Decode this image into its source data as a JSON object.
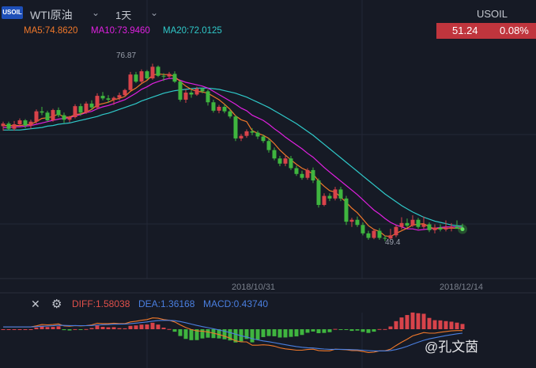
{
  "toolbar": {
    "logo_text": "USOIL",
    "symbol": "WTI原油",
    "interval": "1天",
    "chevron_icon": "chevron-down-icon"
  },
  "ticker": {
    "name": "USOIL",
    "price": "51.24",
    "change": "0.08%",
    "color": "#c0353d"
  },
  "moving_averages": [
    {
      "label": "MA5:74.8620",
      "color": "#f0782a"
    },
    {
      "label": "MA10:73.9460",
      "color": "#e020e0"
    },
    {
      "label": "MA20:72.0125",
      "color": "#2fc9c9"
    }
  ],
  "colors": {
    "background": "#161a25",
    "up": "#d8434a",
    "down": "#3fb53f",
    "grid": "#232836",
    "diff_line": "#f0782a",
    "dea_line": "#4a7fe0"
  },
  "x_axis_labels": [
    "2018/10/31",
    "2018/12/14"
  ],
  "indicator": {
    "close_icon": "close-icon",
    "settings_icon": "gear-icon",
    "diff": "DIFF:1.58038",
    "dea": "DEA:1.36168",
    "macd": "MACD:0.43740"
  },
  "watermark": "@孔文茵",
  "chart_data": {
    "type": "candlestick",
    "high_label": "76.87",
    "low_label": "49.4",
    "series_names": [
      "MA5",
      "MA10",
      "MA20"
    ],
    "candles": [
      [
        67.2,
        67.9,
        66.5,
        67.6
      ],
      [
        67.6,
        67.9,
        66.6,
        66.8
      ],
      [
        66.8,
        68.0,
        66.5,
        67.5
      ],
      [
        67.5,
        68.4,
        67.2,
        68.1
      ],
      [
        68.1,
        68.3,
        66.9,
        67.3
      ],
      [
        67.3,
        68.2,
        66.8,
        67.9
      ],
      [
        67.9,
        69.8,
        67.6,
        69.5
      ],
      [
        69.5,
        70.2,
        68.9,
        69.3
      ],
      [
        69.3,
        69.6,
        67.9,
        68.1
      ],
      [
        68.1,
        69.9,
        67.9,
        69.7
      ],
      [
        69.7,
        70.1,
        68.6,
        68.9
      ],
      [
        68.9,
        69.3,
        67.7,
        68.2
      ],
      [
        68.2,
        68.8,
        67.8,
        68.6
      ],
      [
        68.6,
        70.6,
        68.4,
        70.3
      ],
      [
        70.3,
        70.7,
        68.8,
        69.3
      ],
      [
        69.3,
        71.0,
        69.1,
        70.7
      ],
      [
        70.7,
        71.2,
        69.7,
        70.1
      ],
      [
        70.1,
        72.3,
        69.8,
        71.9
      ],
      [
        71.9,
        72.5,
        71.2,
        71.5
      ],
      [
        71.5,
        72.0,
        70.8,
        71.3
      ],
      [
        71.3,
        71.8,
        70.5,
        71.6
      ],
      [
        71.6,
        72.4,
        71.2,
        72.0
      ],
      [
        72.0,
        73.0,
        71.8,
        72.8
      ],
      [
        72.8,
        75.6,
        72.7,
        75.2
      ],
      [
        75.2,
        75.6,
        73.9,
        74.1
      ],
      [
        74.1,
        76.0,
        73.8,
        75.7
      ],
      [
        75.7,
        75.9,
        74.4,
        74.6
      ],
      [
        74.6,
        76.87,
        74.4,
        76.4
      ],
      [
        76.4,
        76.6,
        74.8,
        75.0
      ],
      [
        75.0,
        75.4,
        74.2,
        74.9
      ],
      [
        74.9,
        75.6,
        74.6,
        75.3
      ],
      [
        75.3,
        75.7,
        73.9,
        74.1
      ],
      [
        74.1,
        74.3,
        71.0,
        71.3
      ],
      [
        71.3,
        72.9,
        70.8,
        72.4
      ],
      [
        72.4,
        72.8,
        71.6,
        72.1
      ],
      [
        72.1,
        73.3,
        71.9,
        73.0
      ],
      [
        73.0,
        73.2,
        72.3,
        72.6
      ],
      [
        72.6,
        72.9,
        70.4,
        70.9
      ],
      [
        70.9,
        71.3,
        69.3,
        69.6
      ],
      [
        69.6,
        70.5,
        69.2,
        70.2
      ],
      [
        70.2,
        70.6,
        69.2,
        69.5
      ],
      [
        69.5,
        69.8,
        68.4,
        68.7
      ],
      [
        68.7,
        68.9,
        64.9,
        65.3
      ],
      [
        65.3,
        66.0,
        64.9,
        65.7
      ],
      [
        65.7,
        66.7,
        65.4,
        66.4
      ],
      [
        66.4,
        66.9,
        65.8,
        66.2
      ],
      [
        66.2,
        66.5,
        65.2,
        65.6
      ],
      [
        65.6,
        65.9,
        64.6,
        64.9
      ],
      [
        64.9,
        65.3,
        63.1,
        63.5
      ],
      [
        63.5,
        63.9,
        61.9,
        62.2
      ],
      [
        62.2,
        62.6,
        61.0,
        61.4
      ],
      [
        61.4,
        62.6,
        61.0,
        62.2
      ],
      [
        62.2,
        62.6,
        60.4,
        60.7
      ],
      [
        60.7,
        61.1,
        59.5,
        59.8
      ],
      [
        59.8,
        60.3,
        58.9,
        59.2
      ],
      [
        59.2,
        60.7,
        58.9,
        60.4
      ],
      [
        60.4,
        60.8,
        58.4,
        58.8
      ],
      [
        58.8,
        59.1,
        54.6,
        55.0
      ],
      [
        55.0,
        56.8,
        54.8,
        56.4
      ],
      [
        56.4,
        56.8,
        55.6,
        56.0
      ],
      [
        56.0,
        57.8,
        55.7,
        57.4
      ],
      [
        57.4,
        57.8,
        55.6,
        56.0
      ],
      [
        56.0,
        56.4,
        51.9,
        52.4
      ],
      [
        52.4,
        53.0,
        51.6,
        52.7
      ],
      [
        52.7,
        53.2,
        51.6,
        51.9
      ],
      [
        51.9,
        52.3,
        50.3,
        50.6
      ],
      [
        50.6,
        51.0,
        49.6,
        49.9
      ],
      [
        49.9,
        51.3,
        49.7,
        51.0
      ],
      [
        51.0,
        51.4,
        49.6,
        49.9
      ],
      [
        49.9,
        50.3,
        49.4,
        49.8
      ],
      [
        49.8,
        51.3,
        49.6,
        50.3
      ],
      [
        50.3,
        51.9,
        50.0,
        51.6
      ],
      [
        51.6,
        53.1,
        51.2,
        52.2
      ],
      [
        52.2,
        52.9,
        51.5,
        51.8
      ],
      [
        51.8,
        53.4,
        51.6,
        52.7
      ],
      [
        52.7,
        53.0,
        51.3,
        51.6
      ],
      [
        51.6,
        53.2,
        51.3,
        52.0
      ],
      [
        52.0,
        52.3,
        50.8,
        51.1
      ],
      [
        51.1,
        52.0,
        50.6,
        51.5
      ],
      [
        51.5,
        52.0,
        50.9,
        51.2
      ],
      [
        51.2,
        52.6,
        50.9,
        51.5
      ],
      [
        51.5,
        52.2,
        50.9,
        51.6
      ],
      [
        51.6,
        52.6,
        51.4,
        51.3
      ],
      [
        51.3,
        52.1,
        51.0,
        51.24
      ]
    ],
    "ma5": [
      67.3,
      67.3,
      67.3,
      67.3,
      67.4,
      67.5,
      67.9,
      68.4,
      68.5,
      68.7,
      69.1,
      68.6,
      68.6,
      69.0,
      69.1,
      69.4,
      69.8,
      70.5,
      70.7,
      70.9,
      71.3,
      71.5,
      71.8,
      72.6,
      73.1,
      73.8,
      74.3,
      75.1,
      75.3,
      75.2,
      75.2,
      74.9,
      74.1,
      73.4,
      72.9,
      72.6,
      72.5,
      72.3,
      71.8,
      71.3,
      70.6,
      69.8,
      68.8,
      68.2,
      67.9,
      66.5,
      66.1,
      65.8,
      65.3,
      64.5,
      63.5,
      62.7,
      62.0,
      61.3,
      60.7,
      60.3,
      59.8,
      58.7,
      57.9,
      57.2,
      57.0,
      56.2,
      55.4,
      54.5,
      53.8,
      52.8,
      51.8,
      51.2,
      50.9,
      50.2,
      50.1,
      50.6,
      51.0,
      51.4,
      51.9,
      52.0,
      52.1,
      51.6,
      51.3,
      51.4,
      51.4,
      51.4,
      51.4,
      51.3
    ],
    "ma10": [
      67.0,
      67.0,
      67.1,
      67.1,
      67.2,
      67.3,
      67.5,
      67.7,
      67.9,
      68.1,
      68.3,
      68.4,
      68.5,
      68.8,
      69.0,
      69.3,
      69.5,
      69.9,
      70.2,
      70.4,
      70.7,
      71.0,
      71.3,
      71.8,
      72.3,
      72.9,
      73.3,
      73.8,
      74.1,
      74.4,
      74.6,
      74.6,
      74.3,
      74.0,
      73.8,
      73.6,
      73.4,
      73.1,
      72.6,
      72.1,
      71.6,
      71.1,
      70.6,
      70.0,
      69.6,
      68.9,
      68.5,
      68.1,
      67.5,
      66.8,
      66.2,
      65.5,
      64.9,
      64.3,
      63.7,
      63.0,
      62.4,
      61.6,
      60.8,
      60.1,
      59.4,
      58.7,
      58.0,
      57.3,
      56.6,
      55.8,
      55.0,
      54.2,
      53.6,
      52.9,
      52.3,
      51.9,
      51.6,
      51.3,
      51.3,
      51.1,
      51.2,
      51.3,
      51.4,
      51.5,
      51.6,
      51.6,
      51.6,
      51.5
    ],
    "ma20": [
      66.6,
      66.6,
      66.6,
      66.6,
      66.7,
      66.8,
      66.9,
      67.0,
      67.2,
      67.3,
      67.5,
      67.6,
      67.7,
      67.9,
      68.1,
      68.3,
      68.5,
      68.7,
      69.0,
      69.2,
      69.5,
      69.8,
      70.1,
      70.4,
      70.7,
      71.1,
      71.4,
      71.7,
      72.0,
      72.3,
      72.5,
      72.7,
      72.8,
      72.9,
      73.0,
      73.1,
      73.1,
      73.1,
      73.0,
      72.9,
      72.7,
      72.5,
      72.3,
      72.0,
      71.7,
      71.3,
      70.9,
      70.5,
      70.1,
      69.6,
      69.1,
      68.6,
      68.1,
      67.6,
      67.0,
      66.4,
      65.8,
      65.1,
      64.4,
      63.7,
      63.0,
      62.3,
      61.6,
      60.9,
      60.2,
      59.5,
      58.8,
      58.1,
      57.4,
      56.7,
      56.1,
      55.5,
      54.9,
      54.4,
      53.9,
      53.5,
      53.1,
      52.8,
      52.5,
      52.3,
      52.1,
      51.9,
      51.8,
      51.7
    ],
    "ylim": [
      48.5,
      80.0
    ]
  }
}
